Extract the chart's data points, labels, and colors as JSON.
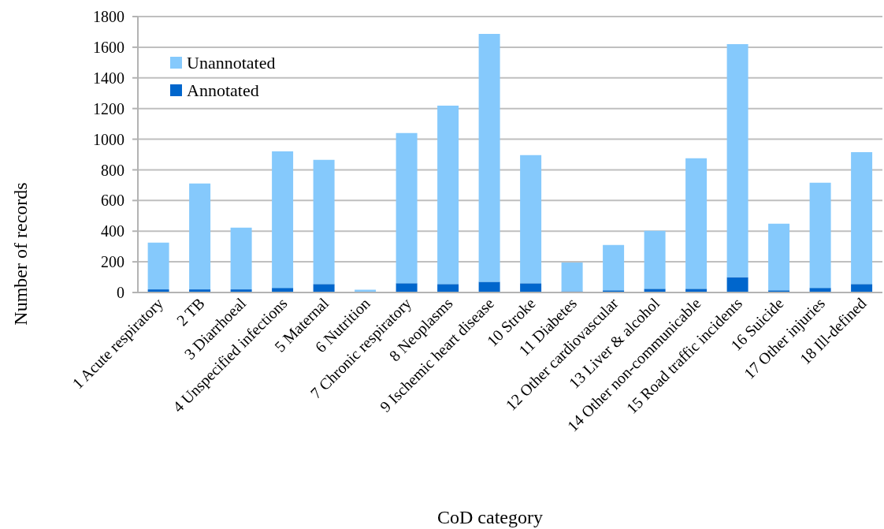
{
  "chart_data": {
    "type": "bar",
    "stacked": true,
    "xlabel": "CoD category",
    "ylabel": "Number of records",
    "categories": [
      "1 Acute respiratory",
      "2 TB",
      "3 Diarrhoeal",
      "4 Unspecified infections",
      "5 Maternal",
      "6 Nutrition",
      "7 Chronic respiratory",
      "8 Neoplasms",
      "9 Ischemic heart disease",
      "10 Stroke",
      "11 Diabetes",
      "12 Other cardiovascular",
      "13 Liver & alcohol",
      "14 Other non-communicable",
      "15 Road traffic incidents",
      "16 Suicide",
      "17 Other injuries",
      "18 Ill-defined"
    ],
    "series": [
      {
        "name": "Annotated",
        "color": "#0066cc",
        "values": [
          20,
          20,
          20,
          30,
          55,
          0,
          60,
          55,
          70,
          60,
          8,
          14,
          24,
          24,
          100,
          14,
          30,
          55
        ]
      },
      {
        "name": "Unannotated",
        "color": "#85c9fc",
        "values": [
          305,
          691,
          403,
          891,
          810,
          18,
          980,
          1164,
          1617,
          836,
          188,
          296,
          378,
          851,
          1520,
          435,
          686,
          861
        ]
      }
    ],
    "ylim": [
      0,
      1800
    ],
    "yticks": [
      0,
      200,
      400,
      600,
      800,
      1000,
      1200,
      1400,
      1600,
      1800
    ],
    "grid": "y",
    "legend": "top left"
  }
}
